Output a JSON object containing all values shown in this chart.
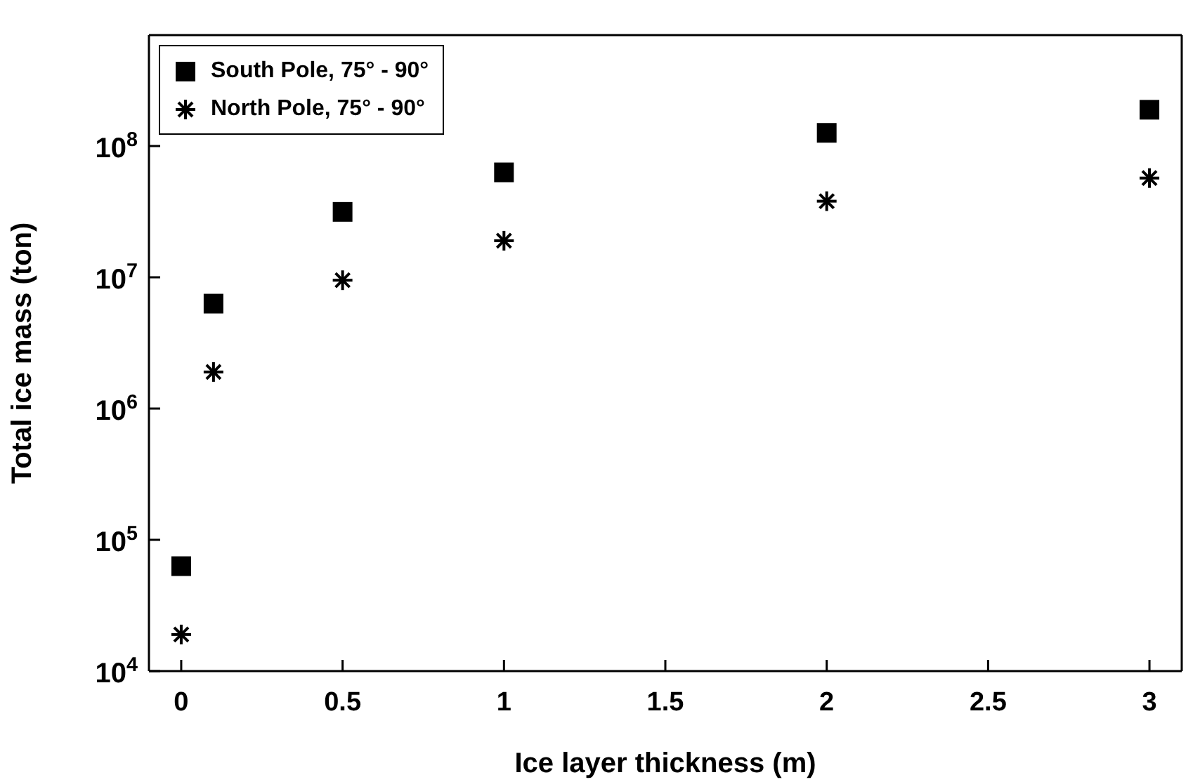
{
  "chart_data": {
    "type": "scatter",
    "xlabel": "Ice layer thickness (m)",
    "ylabel": "Total ice mass (ton)",
    "x": [
      0,
      0.1,
      0.5,
      1,
      2,
      3
    ],
    "series": [
      {
        "name": "South Pole, 75° - 90°",
        "color": "#000000",
        "marker": "square",
        "values": [
          63000,
          6300000,
          31500000,
          63000000,
          126000000,
          189000000
        ]
      },
      {
        "name": "North Pole, 75° - 90°",
        "color": "#000000",
        "marker": "cross",
        "values": [
          19000,
          1900000,
          9500000,
          19000000,
          38000000,
          57000000
        ]
      }
    ],
    "xlim": [
      -0.1,
      3.1
    ],
    "xticks": [
      0,
      0.5,
      1,
      1.5,
      2,
      2.5,
      3
    ],
    "ylim": [
      10000,
      700000000
    ],
    "yticks": [
      {
        "value": 10000,
        "label": "10$^{4}$"
      },
      {
        "value": 100000,
        "label": "10$^{5}$"
      },
      {
        "value": 1000000,
        "label": "10$^{6}$"
      },
      {
        "value": 10000000,
        "label": "10$^{7}$"
      },
      {
        "value": 100000000,
        "label": "10$^{8}$"
      }
    ],
    "log": "y",
    "grid": false,
    "legend": "top left"
  }
}
